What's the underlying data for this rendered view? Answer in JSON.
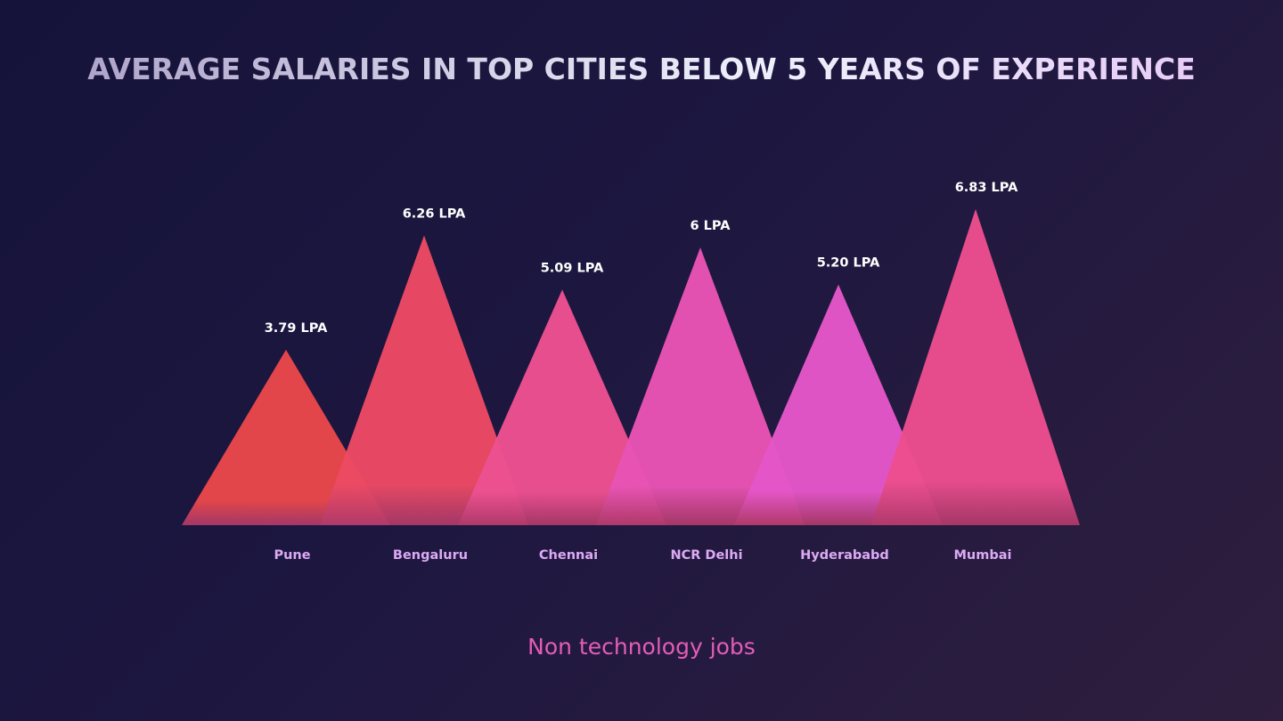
{
  "chart_data": {
    "type": "bar",
    "mark": "triangle",
    "title": "AVERAGE SALARIES IN TOP CITIES BELOW 5 YEARS OF EXPERIENCE",
    "subtitle": "Non technology jobs",
    "categories": [
      "Pune",
      "Bengaluru",
      "Chennai",
      "NCR Delhi",
      "Hyderababd",
      "Mumbai"
    ],
    "values": [
      3.79,
      6.26,
      5.09,
      6,
      5.2,
      6.83
    ],
    "data_labels": [
      "3.79 LPA",
      "6.26 LPA",
      "5.09 LPA",
      "6 LPA",
      "5.20 LPA",
      "6.83 LPA"
    ],
    "unit": "LPA",
    "colors": [
      "#e8474a",
      "#ec4a64",
      "#ec5090",
      "#e853b4",
      "#e456c8",
      "#ec4e8e"
    ],
    "grid": false,
    "legend": "none"
  }
}
